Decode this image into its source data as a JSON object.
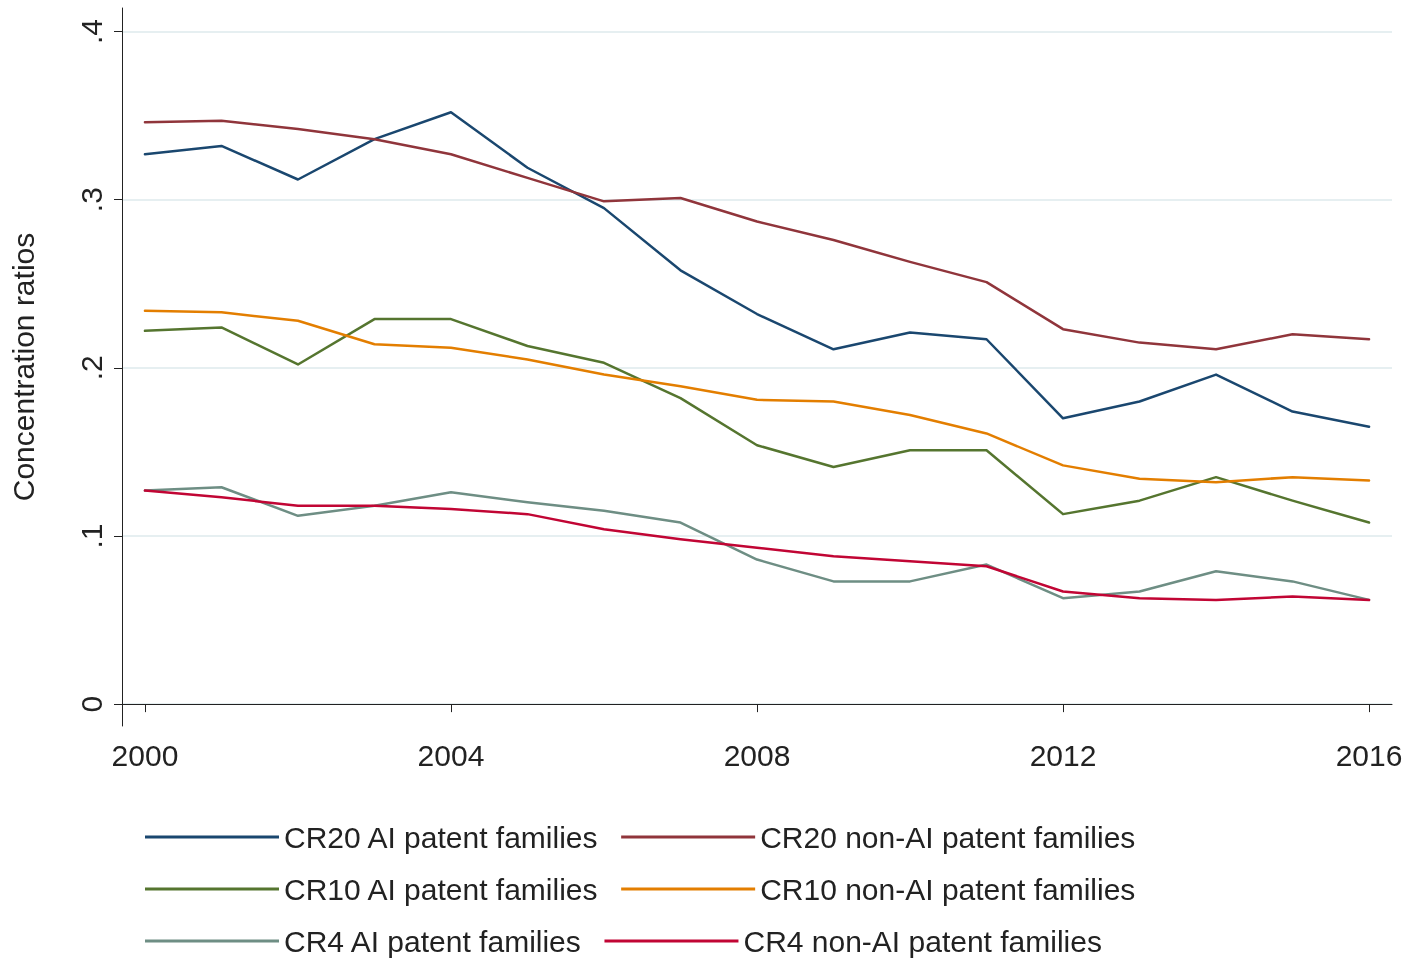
{
  "chart_data": {
    "type": "line",
    "ylabel": "Concentration ratios",
    "x": [
      2000,
      2001,
      2002,
      2003,
      2004,
      2005,
      2006,
      2007,
      2008,
      2009,
      2010,
      2011,
      2012,
      2013,
      2014,
      2015,
      2016
    ],
    "xlim": [
      1999.7,
      2016.3
    ],
    "xticks": [
      2000,
      2004,
      2008,
      2012,
      2016
    ],
    "ylim": [
      -0.013,
      0.414
    ],
    "yticks": [
      0,
      {
        "value": 0.1,
        "label": ".1"
      },
      {
        "value": 0.2,
        "label": ".2"
      },
      {
        "value": 0.3,
        "label": ".3"
      },
      {
        "value": 0.4,
        "label": ".4"
      }
    ],
    "grid": "y",
    "legend": "bottom",
    "marker": "none",
    "line_style": "solid",
    "series": [
      {
        "name": "CR20 AI patent families",
        "color": "#1a476f",
        "values": [
          0.327,
          0.332,
          0.312,
          0.336,
          0.352,
          0.319,
          0.295,
          0.258,
          0.232,
          0.211,
          0.221,
          0.217,
          0.17,
          0.18,
          0.196,
          0.174,
          0.165
        ]
      },
      {
        "name": "CR20 non-AI patent families",
        "color": "#90353b",
        "values": [
          0.346,
          0.347,
          0.342,
          0.336,
          0.327,
          0.313,
          0.299,
          0.301,
          0.287,
          0.276,
          0.263,
          0.251,
          0.223,
          0.215,
          0.211,
          0.22,
          0.217
        ]
      },
      {
        "name": "CR10 AI patent families",
        "color": "#55752f",
        "values": [
          0.222,
          0.224,
          0.202,
          0.229,
          0.229,
          0.213,
          0.203,
          0.182,
          0.154,
          0.141,
          0.151,
          0.151,
          0.113,
          0.121,
          0.135,
          0.121,
          0.108
        ]
      },
      {
        "name": "CR10 non-AI patent families",
        "color": "#e37e00",
        "values": [
          0.234,
          0.233,
          0.228,
          0.214,
          0.212,
          0.205,
          0.196,
          0.189,
          0.181,
          0.18,
          0.172,
          0.161,
          0.142,
          0.134,
          0.132,
          0.135,
          0.133
        ]
      },
      {
        "name": "CR4 AI patent families",
        "color": "#6e8e84",
        "values": [
          0.127,
          0.129,
          0.112,
          0.118,
          0.126,
          0.12,
          0.115,
          0.108,
          0.086,
          0.073,
          0.073,
          0.083,
          0.063,
          0.067,
          0.079,
          0.073,
          0.062
        ]
      },
      {
        "name": "CR4 non-AI patent families",
        "color": "#c10534",
        "values": [
          0.127,
          0.123,
          0.118,
          0.118,
          0.116,
          0.113,
          0.104,
          0.098,
          0.093,
          0.088,
          0.085,
          0.082,
          0.067,
          0.063,
          0.062,
          0.064,
          0.062
        ]
      }
    ]
  }
}
